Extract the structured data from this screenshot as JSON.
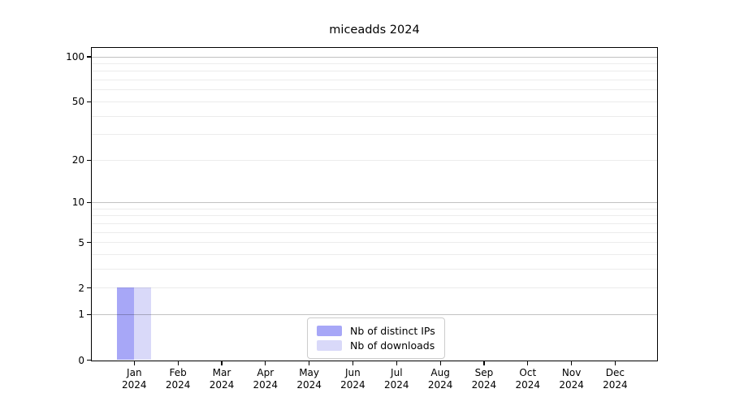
{
  "chart_data": {
    "type": "bar",
    "title": "miceadds 2024",
    "categories": [
      "Jan",
      "Feb",
      "Mar",
      "Apr",
      "May",
      "Jun",
      "Jul",
      "Aug",
      "Sep",
      "Oct",
      "Nov",
      "Dec"
    ],
    "category_year_line": "2024",
    "series": [
      {
        "name": "Nb of distinct IPs",
        "color": "#a7a7f7",
        "values": [
          2,
          0,
          0,
          0,
          0,
          0,
          0,
          0,
          0,
          0,
          0,
          0
        ]
      },
      {
        "name": "Nb of downloads",
        "color": "#d9d9f9",
        "values": [
          2,
          0,
          0,
          0,
          0,
          0,
          0,
          0,
          0,
          0,
          0,
          0
        ]
      }
    ],
    "y_axis": {
      "scale": "log1p",
      "tick_values": [
        0,
        1,
        2,
        5,
        10,
        20,
        50,
        100
      ],
      "tick_labels": [
        "0",
        "1",
        "2",
        "5",
        "10",
        "20",
        "50",
        "100"
      ],
      "range_max": 115
    },
    "x_axis": {
      "tick_count": 12
    },
    "grid": {
      "major_values": [
        1,
        10,
        100
      ],
      "minor_values": [
        2,
        3,
        4,
        5,
        6,
        7,
        8,
        9,
        20,
        30,
        40,
        50,
        60,
        70,
        80,
        90
      ]
    },
    "legend": {
      "position": "inside-bottom-center"
    },
    "colors": {
      "background": "#ffffff",
      "spine": "#000000",
      "grid_major": "#c3c3c3",
      "grid_minor": "#ececec"
    }
  }
}
